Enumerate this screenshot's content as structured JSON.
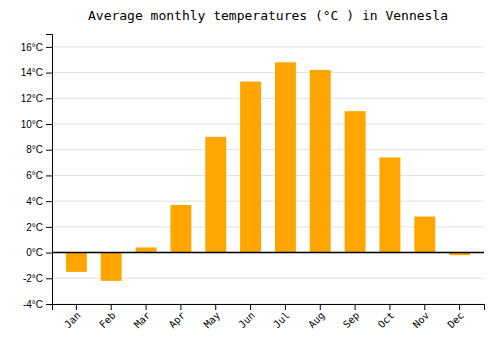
{
  "chart_data": {
    "type": "bar",
    "title": "Average monthly temperatures (°C ) in Vennesla",
    "categories": [
      "Jan",
      "Feb",
      "Mar",
      "Apr",
      "May",
      "Jun",
      "Jul",
      "Aug",
      "Sep",
      "Oct",
      "Nov",
      "Dec"
    ],
    "values": [
      -1.5,
      -2.2,
      0.4,
      3.7,
      9.0,
      13.3,
      14.8,
      14.2,
      11.0,
      7.4,
      2.8,
      -0.2
    ],
    "color": "#FFA500",
    "ylim": [
      -4,
      17
    ],
    "yticks": [
      {
        "value": -4,
        "label": "-4°C"
      },
      {
        "value": -2,
        "label": "-2°C"
      },
      {
        "value": 0,
        "label": "0°C"
      },
      {
        "value": 2,
        "label": "2°C"
      },
      {
        "value": 4,
        "label": "4°C"
      },
      {
        "value": 6,
        "label": "6°C"
      },
      {
        "value": 8,
        "label": "8°C"
      },
      {
        "value": 10,
        "label": "10°C"
      },
      {
        "value": 12,
        "label": "12°C"
      },
      {
        "value": 14,
        "label": "14°C"
      },
      {
        "value": 16,
        "label": "16°C"
      }
    ],
    "grid": true
  }
}
